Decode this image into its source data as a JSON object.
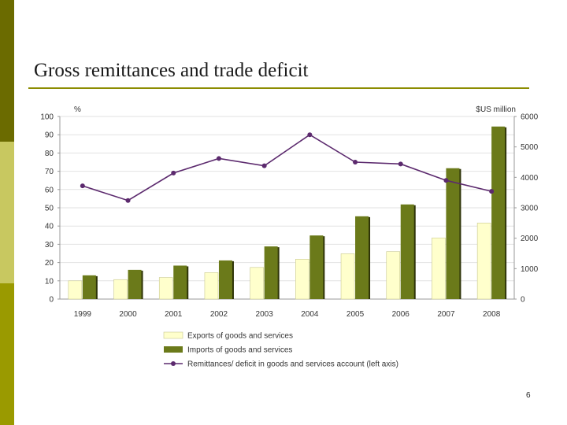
{
  "slide": {
    "title": "Gross remittances and trade deficit",
    "page_number": "6"
  },
  "colors": {
    "exports": "#ffffcc",
    "exports_stroke": "#c8c890",
    "imports": "#6b7a1a",
    "imports_shadow": "#2e3408",
    "line": "#5c2a6e",
    "accent": "#8c8c00"
  },
  "chart_data": {
    "type": "bar",
    "categories": [
      "1999",
      "2000",
      "2001",
      "2002",
      "2003",
      "2004",
      "2005",
      "2006",
      "2007",
      "2008"
    ],
    "series": [
      {
        "name": "Exports of goods and services",
        "type": "bar",
        "axis": "right",
        "values": [
          600,
          640,
          710,
          870,
          1040,
          1310,
          1490,
          1560,
          2010,
          2500
        ]
      },
      {
        "name": "Imports of goods and services",
        "type": "bar",
        "axis": "right",
        "values": [
          780,
          960,
          1100,
          1270,
          1730,
          2090,
          2720,
          3110,
          4300,
          5670
        ]
      },
      {
        "name": "Remittances/ deficit in goods and services account (left axis)",
        "type": "line",
        "axis": "left",
        "values": [
          62,
          54,
          69,
          77,
          73,
          90,
          75,
          74,
          65,
          59
        ]
      }
    ],
    "left_axis": {
      "label": "%",
      "ticks": [
        "0",
        "10",
        "20",
        "30",
        "40",
        "50",
        "60",
        "70",
        "80",
        "90",
        "100"
      ],
      "range": [
        0,
        100
      ]
    },
    "right_axis": {
      "label": "$US million",
      "ticks": [
        "0",
        "1000",
        "2000",
        "3000",
        "4000",
        "5000",
        "6000"
      ],
      "range": [
        0,
        6000
      ]
    },
    "grid": true,
    "legend_position": "bottom"
  }
}
